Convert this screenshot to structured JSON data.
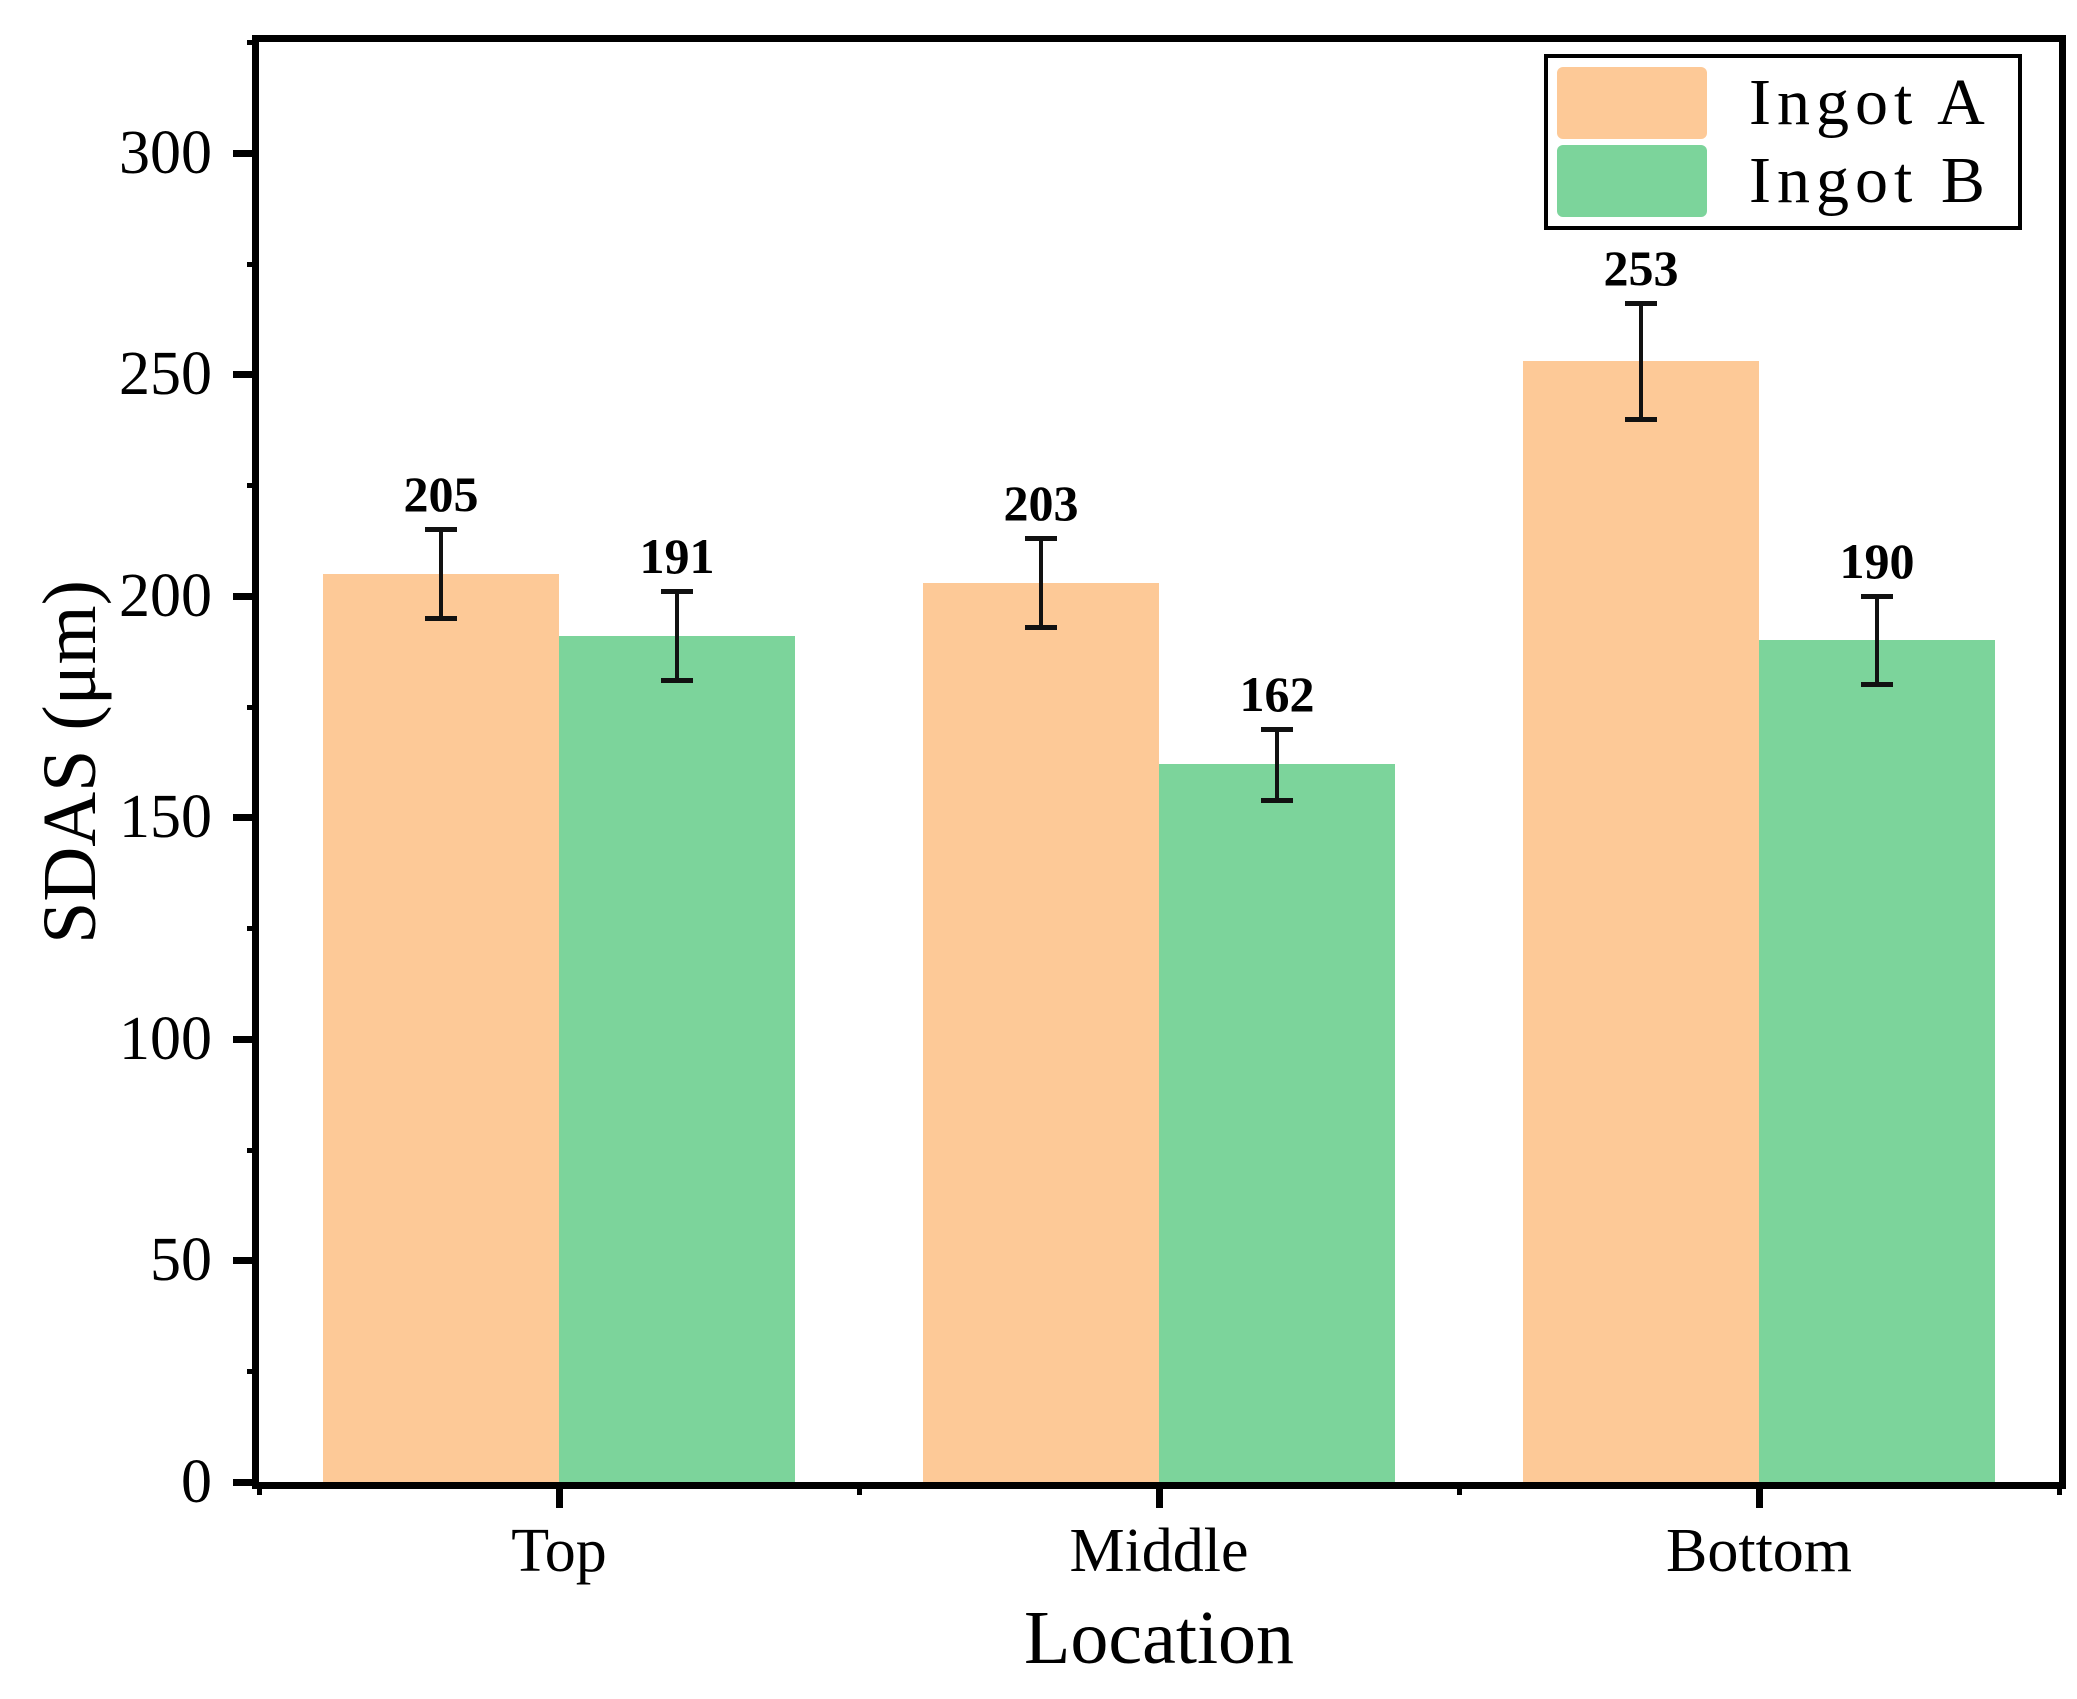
{
  "chart_data": {
    "type": "bar",
    "title": "",
    "categories": [
      "Top",
      "Middle",
      "Bottom"
    ],
    "series": [
      {
        "name": "Ingot A",
        "color": "#FDC997",
        "values": [
          205,
          203,
          253
        ],
        "error_bars": [
          10,
          10,
          13
        ]
      },
      {
        "name": "Ingot B",
        "color": "#7CD49B",
        "values": [
          191,
          162,
          190
        ],
        "error_bars": [
          10,
          8,
          10
        ]
      }
    ],
    "xlabel": "Location",
    "ylabel": "SDAS (μm)",
    "ylim": [
      0,
      325
    ],
    "y_major_ticks": [
      0,
      50,
      100,
      150,
      200,
      250,
      300
    ],
    "y_minor_tick_interval": 25,
    "grid": false,
    "value_labels_shown": true,
    "legend_position": "top-right",
    "axis_color": "#000000",
    "text_color": "#000000",
    "error_bar_color": "#111111"
  }
}
